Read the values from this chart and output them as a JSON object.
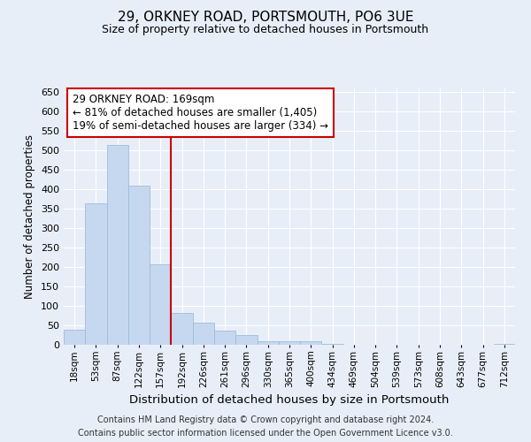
{
  "title": "29, ORKNEY ROAD, PORTSMOUTH, PO6 3UE",
  "subtitle": "Size of property relative to detached houses in Portsmouth",
  "xlabel": "Distribution of detached houses by size in Portsmouth",
  "ylabel": "Number of detached properties",
  "categories": [
    "18sqm",
    "53sqm",
    "87sqm",
    "122sqm",
    "157sqm",
    "192sqm",
    "226sqm",
    "261sqm",
    "296sqm",
    "330sqm",
    "365sqm",
    "400sqm",
    "434sqm",
    "469sqm",
    "504sqm",
    "539sqm",
    "573sqm",
    "608sqm",
    "643sqm",
    "677sqm",
    "712sqm"
  ],
  "values": [
    38,
    365,
    515,
    410,
    207,
    83,
    57,
    37,
    25,
    10,
    10,
    10,
    2,
    1,
    1,
    1,
    1,
    1,
    1,
    1,
    2
  ],
  "bar_color": "#c5d8f0",
  "bar_edge_color": "#a0bcd8",
  "background_color": "#e8eef8",
  "grid_color": "#ffffff",
  "vline_color": "#cc0000",
  "vline_x_index": 4.5,
  "annotation_line1": "29 ORKNEY ROAD: 169sqm",
  "annotation_line2": "← 81% of detached houses are smaller (1,405)",
  "annotation_line3": "19% of semi-detached houses are larger (334) →",
  "annotation_box_color": "#ffffff",
  "annotation_box_edge": "#cc0000",
  "footer1": "Contains HM Land Registry data © Crown copyright and database right 2024.",
  "footer2": "Contains public sector information licensed under the Open Government Licence v3.0.",
  "ylim": [
    0,
    660
  ],
  "yticks": [
    0,
    50,
    100,
    150,
    200,
    250,
    300,
    350,
    400,
    450,
    500,
    550,
    600,
    650
  ]
}
